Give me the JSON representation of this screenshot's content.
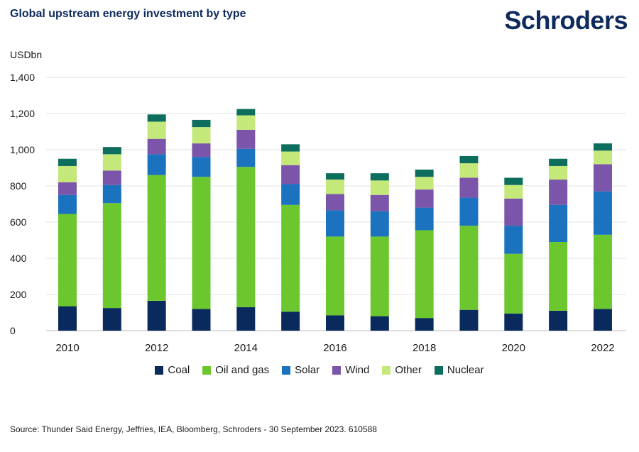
{
  "header": {
    "title": "Global upstream energy investment by type",
    "brand": "Schroders"
  },
  "footer": {
    "source": "Source: Thunder Said Energy, Jeffries, IEA, Bloomberg, Schroders - 30 September 2023. 610588"
  },
  "chart_data": {
    "type": "bar",
    "stacked": true,
    "ylabel": "USDbn",
    "ylim": [
      0,
      1400
    ],
    "yticks": [
      0,
      200,
      400,
      600,
      800,
      1000,
      1200,
      1400
    ],
    "ytick_labels": [
      "0",
      "200",
      "400",
      "600",
      "800",
      "1,000",
      "1,200",
      "1,400"
    ],
    "grid": true,
    "legend_position": "bottom",
    "categories": [
      "2010",
      "2011",
      "2012",
      "2013",
      "2014",
      "2015",
      "2016",
      "2017",
      "2018",
      "2019",
      "2020",
      "2021",
      "2022"
    ],
    "xtick_labels": [
      "2010",
      "",
      "2012",
      "",
      "2014",
      "",
      "2016",
      "",
      "2018",
      "",
      "2020",
      "",
      "2022"
    ],
    "series": [
      {
        "name": "Coal",
        "color": "#0a2a5e",
        "values": [
          135,
          125,
          165,
          120,
          130,
          105,
          85,
          80,
          70,
          115,
          95,
          110,
          120
        ]
      },
      {
        "name": "Oil and gas",
        "color": "#6cc72e",
        "values": [
          510,
          580,
          695,
          730,
          775,
          590,
          435,
          440,
          485,
          465,
          330,
          380,
          410
        ]
      },
      {
        "name": "Solar",
        "color": "#1b72be",
        "values": [
          105,
          100,
          115,
          110,
          100,
          115,
          145,
          140,
          125,
          155,
          155,
          205,
          240
        ]
      },
      {
        "name": "Wind",
        "color": "#7b55a9",
        "values": [
          70,
          80,
          85,
          75,
          105,
          105,
          90,
          90,
          100,
          110,
          150,
          140,
          150
        ]
      },
      {
        "name": "Other",
        "color": "#c5e87a",
        "values": [
          90,
          90,
          95,
          90,
          80,
          75,
          80,
          80,
          70,
          80,
          75,
          75,
          75
        ]
      },
      {
        "name": "Nuclear",
        "color": "#0d6e5e",
        "values": [
          40,
          40,
          40,
          40,
          35,
          40,
          35,
          40,
          40,
          40,
          40,
          40,
          40
        ]
      }
    ]
  }
}
